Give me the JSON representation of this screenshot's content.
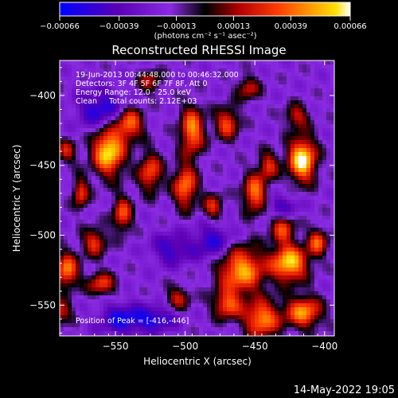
{
  "chart_data": {
    "type": "heatmap",
    "title": "Reconstructed RHESSI Image",
    "xlabel": "Heliocentric X (arcsec)",
    "ylabel": "Heliocentric Y (arcsec)",
    "xlim": [
      -590,
      -393
    ],
    "ylim": [
      -572,
      -375
    ],
    "x_ticks": [
      -550,
      -500,
      -450,
      -400
    ],
    "y_ticks": [
      -400,
      -450,
      -500,
      -550
    ],
    "x_tick_labels": [
      "−550",
      "−500",
      "−450",
      "−400"
    ],
    "y_tick_labels": [
      "−400",
      "−450",
      "−500",
      "−550"
    ],
    "colorbar": {
      "min": -0.00066,
      "max": 0.00066,
      "tick_values": [
        -0.00066,
        -0.00039,
        -0.00013,
        0.00013,
        0.00039,
        0.00066
      ],
      "tick_labels": [
        "−0.00066",
        "−0.00039",
        "−0.00013",
        "0.00013",
        "0.00039",
        "0.00066"
      ],
      "units_label": "(photons cm⁻² s⁻¹ asec⁻²)",
      "colors": [
        "#0000ff",
        "#5a00b4",
        "#8a2be2",
        "#000000",
        "#b40000",
        "#ff3c00",
        "#ffa000",
        "#ffe000",
        "#ffffff"
      ]
    },
    "annotations": [
      "19-Jun-2013 00:44:48.000 to 00:46:32.000",
      "Detectors: 3F 4F 5F 6F 7F 8F, Att 0",
      "Energy Range: 12.0 - 25.0 keV",
      "Clean     Total counts: 2.12E+03"
    ],
    "peak_label": "Position of Peak = [-416,-446]",
    "peak_position": [
      -416,
      -446
    ],
    "grid": false
  },
  "footer": {
    "timestamp": "14-May-2022 19:05"
  }
}
